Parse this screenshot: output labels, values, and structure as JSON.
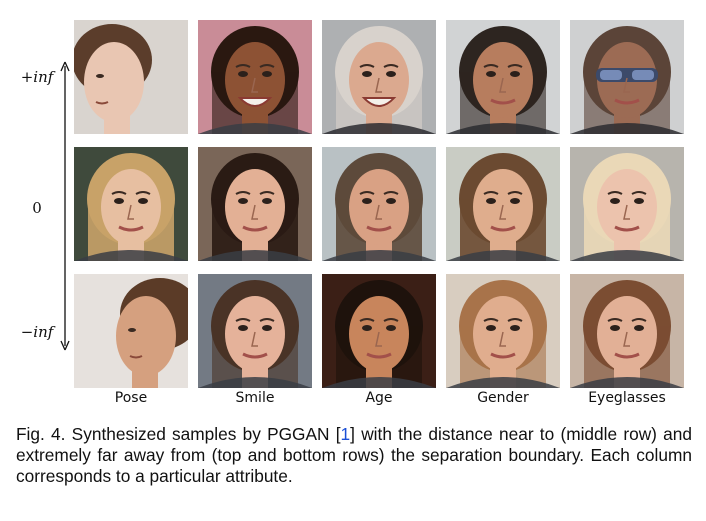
{
  "figure": {
    "row_labels": [
      "+inf",
      "0",
      "−inf"
    ],
    "columns": [
      "Pose",
      "Smile",
      "Age",
      "Gender",
      "Eyeglasses"
    ],
    "cells": [
      [
        {
          "name": "face-pose-plus",
          "bg": "#d9d4cf",
          "skin": "#e9c6b2",
          "hair": "#5b3d2b"
        },
        {
          "name": "face-smile-plus",
          "bg": "#c98c97",
          "skin": "#8d5234",
          "hair": "#2a1810"
        },
        {
          "name": "face-age-plus",
          "bg": "#aeb0b2",
          "skin": "#dba98f",
          "hair": "#d8d2cc"
        },
        {
          "name": "face-gender-plus",
          "bg": "#d1d3d4",
          "skin": "#b77d5e",
          "hair": "#2d2520"
        },
        {
          "name": "face-eyeglasses-plus",
          "bg": "#cfd0d1",
          "skin": "#9c6b54",
          "hair": "#5b4438"
        }
      ],
      [
        {
          "name": "face-pose-zero",
          "bg": "#3f4a3c",
          "skin": "#e7bfa1",
          "hair": "#c8a268"
        },
        {
          "name": "face-smile-zero",
          "bg": "#7a6658",
          "skin": "#e3b095",
          "hair": "#2a1b14"
        },
        {
          "name": "face-age-zero",
          "bg": "#b9c1c4",
          "skin": "#d9a184",
          "hair": "#5d4a3b"
        },
        {
          "name": "face-gender-zero",
          "bg": "#c9ccc4",
          "skin": "#dfad8d",
          "hair": "#6b4a31"
        },
        {
          "name": "face-eyeglasses-zero",
          "bg": "#b7b4ad",
          "skin": "#ecc3ad",
          "hair": "#ead8b7"
        }
      ],
      [
        {
          "name": "face-pose-minus",
          "bg": "#e6e1dd",
          "skin": "#d5a07f",
          "hair": "#5b3b27"
        },
        {
          "name": "face-smile-minus",
          "bg": "#737a84",
          "skin": "#e5b29a",
          "hair": "#4a3326"
        },
        {
          "name": "face-age-minus",
          "bg": "#3b1f16",
          "skin": "#c8855c",
          "hair": "#1e120c"
        },
        {
          "name": "face-gender-minus",
          "bg": "#d8cdc0",
          "skin": "#e0ad8e",
          "hair": "#a8734a"
        },
        {
          "name": "face-eyeglasses-minus",
          "bg": "#c7b5a6",
          "skin": "#e2b096",
          "hair": "#7b4d32"
        }
      ]
    ]
  },
  "caption": {
    "prefix": "Fig. 4.   Synthesized samples by PGGAN [",
    "ref": "1",
    "suffix": "] with the distance near to (middle row) and extremely far away from (top and bottom rows) the separation boundary. Each column corresponds to a particular attribute."
  },
  "colors": {
    "reference_link": "#1a4fd6",
    "text": "#111111"
  }
}
